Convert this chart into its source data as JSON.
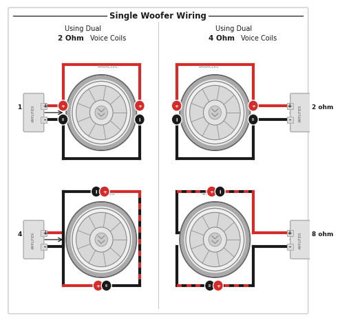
{
  "title": "Single Woofer Wiring",
  "bg_color": "#f8f8f8",
  "white": "#ffffff",
  "red": "#d42b2b",
  "black": "#1a1a1a",
  "gray_text": "#888888",
  "gray_line": "#cccccc",
  "gray_med": "#999999",
  "amp_fill": "#e0e0e0",
  "amp_edge": "#aaaaaa",
  "woofer_outer": "#555555",
  "woofer_mid": "#999999",
  "woofer_cone": "#cccccc",
  "woofer_cap": "#e8e8e8",
  "woofer_surround": "#bbbbbb",
  "labels": {
    "tl_imp": "1 ohm",
    "tr_imp": "2 ohm",
    "bl_imp": "4 ohm",
    "br_imp": "8 ohm",
    "parallel": "PARALLEL",
    "series": "SERIES",
    "tl_head1": "Using Dual",
    "tl_head2": "2 Ohm",
    "tl_head3": " Voice Coils",
    "tr_head1": "Using Dual",
    "tr_head2": "4 Ohm",
    "tr_head3": " Voice Coils"
  }
}
